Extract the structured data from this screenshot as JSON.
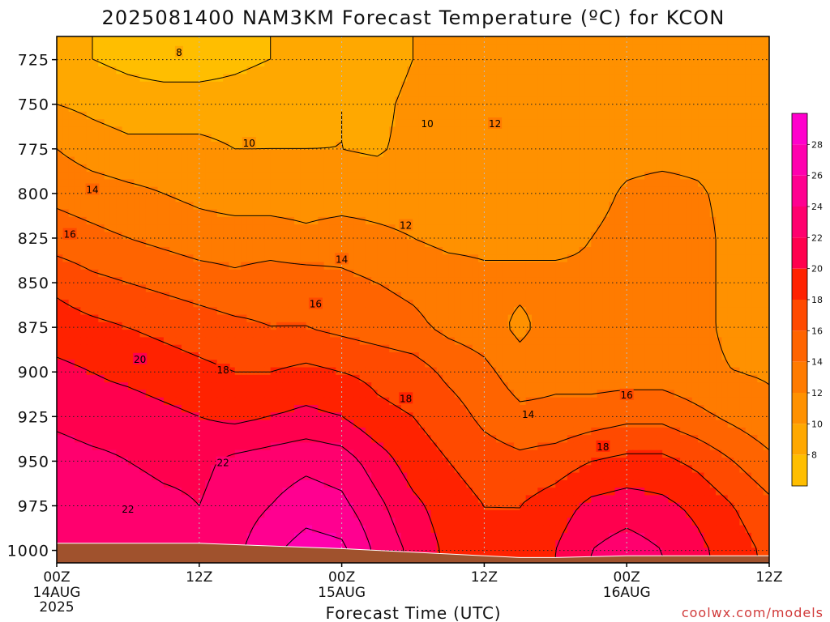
{
  "title": "2025081400 NAM3KM Forecast Temperature (ºC) for KCON",
  "credit": "coolwx.com/models",
  "chart_data": {
    "type": "heatmap",
    "title": "2025081400 NAM3KM Forecast Temperature (ºC) for KCON",
    "xlabel": "Forecast Time (UTC)",
    "ylabel": "",
    "x_ticks": [
      {
        "label": "00Z",
        "sub": "14AUG",
        "sub2": "2025",
        "hour": 0
      },
      {
        "label": "12Z",
        "sub": "",
        "sub2": "",
        "hour": 12
      },
      {
        "label": "00Z",
        "sub": "15AUG",
        "sub2": "",
        "hour": 24
      },
      {
        "label": "12Z",
        "sub": "",
        "sub2": "",
        "hour": 36
      },
      {
        "label": "00Z",
        "sub": "16AUG",
        "sub2": "",
        "hour": 48
      },
      {
        "label": "12Z",
        "sub": "",
        "sub2": "",
        "hour": 60
      }
    ],
    "xlim": [
      0,
      60
    ],
    "y_ticks": [
      725,
      750,
      775,
      800,
      825,
      850,
      875,
      900,
      925,
      950,
      975,
      1000
    ],
    "ylim": [
      712,
      1007
    ],
    "hours": [
      0,
      3,
      6,
      9,
      12,
      15,
      18,
      21,
      24,
      27,
      30,
      33,
      36,
      39,
      42,
      45,
      48,
      51,
      54,
      57,
      60
    ],
    "levels": [
      725,
      750,
      775,
      800,
      825,
      850,
      875,
      900,
      925,
      950,
      975,
      1000
    ],
    "temperature_grid": [
      [
        9,
        8,
        7.5,
        7,
        7,
        7.5,
        8,
        8.5,
        9,
        9,
        10,
        10.5,
        11,
        11,
        11,
        11,
        11,
        11,
        11,
        11,
        11
      ],
      [
        10,
        9.5,
        9,
        9,
        9,
        9,
        9.5,
        9.5,
        10,
        9.5,
        10.5,
        11,
        11.5,
        11.5,
        11.5,
        11.5,
        11.5,
        11.5,
        11.5,
        11.5,
        11.5
      ],
      [
        12,
        11,
        10.5,
        10.5,
        10.5,
        10,
        10,
        10,
        10,
        9.8,
        10.5,
        11,
        11.5,
        11.5,
        11.5,
        11.5,
        11.5,
        11.5,
        11.5,
        11.5,
        11.5
      ],
      [
        13.5,
        13,
        12.5,
        12,
        11.5,
        11,
        11,
        11,
        11,
        11,
        11,
        11.5,
        11.5,
        11.5,
        11.5,
        11.5,
        12.2,
        12.5,
        12.2,
        11.5,
        11.5
      ],
      [
        15,
        14.5,
        14,
        13.5,
        13,
        13,
        13,
        12.5,
        13,
        12.5,
        12,
        11.5,
        11.5,
        11.5,
        11.5,
        12,
        12.5,
        12.5,
        12.5,
        11.5,
        11.5
      ],
      [
        17.5,
        16.5,
        16,
        15.5,
        15,
        14.5,
        15,
        15,
        14.5,
        14,
        13.5,
        13,
        12.5,
        12.5,
        12.5,
        12.3,
        12.3,
        12.3,
        12.5,
        11.5,
        11.5
      ],
      [
        19,
        18.5,
        18,
        17.5,
        17,
        16.5,
        16,
        16,
        15.5,
        15,
        14.5,
        13.5,
        13,
        11.5,
        13,
        12.5,
        12.3,
        12.4,
        12.5,
        11.5,
        11.5
      ],
      [
        20.5,
        20,
        19.5,
        19,
        18.5,
        18,
        18,
        18.5,
        18,
        17.5,
        17,
        15.5,
        14.5,
        13,
        13.5,
        13,
        13,
        13,
        12.5,
        12,
        11.8
      ],
      [
        21.5,
        21,
        21,
        20.5,
        20,
        19.5,
        20,
        20.5,
        20,
        18.5,
        18,
        17,
        15.5,
        14.5,
        14.5,
        15,
        15.5,
        15.5,
        14.5,
        13.5,
        12.5
      ],
      [
        23,
        22.5,
        22,
        21.5,
        21.5,
        22.5,
        23,
        23.5,
        23,
        21,
        19,
        18,
        17,
        16.5,
        17,
        18,
        18.5,
        18.5,
        17.5,
        16,
        14.5
      ],
      [
        23.5,
        23,
        23,
        22.5,
        22,
        23,
        24,
        25,
        24.5,
        22.5,
        20.5,
        19,
        18,
        18,
        19,
        20.5,
        21,
        20.5,
        19.5,
        18,
        16.5
      ],
      [
        24,
        23.5,
        23.5,
        23,
        22.5,
        23.5,
        25.5,
        27,
        26.5,
        23.5,
        21.5,
        19.5,
        18.5,
        18.5,
        20,
        22,
        23,
        22,
        20.5,
        19,
        17.5
      ]
    ],
    "contour_levels": [
      8,
      10,
      12,
      14,
      16,
      18,
      20,
      22,
      24,
      26
    ],
    "contour_labels": [
      {
        "text": "8",
        "hour": 10.3,
        "level": 721
      },
      {
        "text": "10",
        "hour": 16.2,
        "level": 772
      },
      {
        "text": "10",
        "hour": 31.2,
        "level": 761
      },
      {
        "text": "12",
        "hour": 36.9,
        "level": 761
      },
      {
        "text": "12",
        "hour": 29.4,
        "level": 818
      },
      {
        "text": "14",
        "hour": 3.0,
        "level": 798
      },
      {
        "text": "14",
        "hour": 24.0,
        "level": 837
      },
      {
        "text": "14",
        "hour": 39.7,
        "level": 924
      },
      {
        "text": "16",
        "hour": 1.1,
        "level": 823
      },
      {
        "text": "16",
        "hour": 21.8,
        "level": 862
      },
      {
        "text": "16",
        "hour": 48.0,
        "level": 913
      },
      {
        "text": "18",
        "hour": 14.0,
        "level": 899
      },
      {
        "text": "18",
        "hour": 29.4,
        "level": 915
      },
      {
        "text": "18",
        "hour": 46.0,
        "level": 942
      },
      {
        "text": "20",
        "hour": 7.0,
        "level": 893
      },
      {
        "text": "22",
        "hour": 14.0,
        "level": 951
      },
      {
        "text": "22",
        "hour": 6.0,
        "level": 977
      }
    ],
    "surface_pressure": [
      {
        "hour": 0,
        "level": 996
      },
      {
        "hour": 12,
        "level": 996
      },
      {
        "hour": 24,
        "level": 999
      },
      {
        "hour": 30,
        "level": 1001
      },
      {
        "hour": 36,
        "level": 1003
      },
      {
        "hour": 39,
        "level": 1004
      },
      {
        "hour": 42,
        "level": 1004
      },
      {
        "hour": 48,
        "level": 1003
      },
      {
        "hour": 54,
        "level": 1003
      },
      {
        "hour": 60,
        "level": 1003
      }
    ],
    "colorbar": {
      "ticks": [
        8,
        10,
        12,
        14,
        16,
        18,
        20,
        22,
        24,
        26,
        28
      ],
      "range": [
        6,
        30
      ],
      "bands": [
        {
          "from": 6,
          "to": 8,
          "color": "#ffbe00"
        },
        {
          "from": 8,
          "to": 10,
          "color": "#ffa800"
        },
        {
          "from": 10,
          "to": 12,
          "color": "#ff9100"
        },
        {
          "from": 12,
          "to": 14,
          "color": "#ff7b00"
        },
        {
          "from": 14,
          "to": 16,
          "color": "#ff6400"
        },
        {
          "from": 16,
          "to": 18,
          "color": "#ff4a00"
        },
        {
          "from": 18,
          "to": 20,
          "color": "#ff2200"
        },
        {
          "from": 20,
          "to": 22,
          "color": "#ff004e"
        },
        {
          "from": 22,
          "to": 24,
          "color": "#ff006e"
        },
        {
          "from": 24,
          "to": 26,
          "color": "#ff0090"
        },
        {
          "from": 26,
          "to": 28,
          "color": "#ff00ae"
        },
        {
          "from": 28,
          "to": 30,
          "color": "#ff00cc"
        }
      ]
    },
    "grid": true,
    "ground_color": "#a0522d",
    "credit_color": "#d13a3a"
  }
}
